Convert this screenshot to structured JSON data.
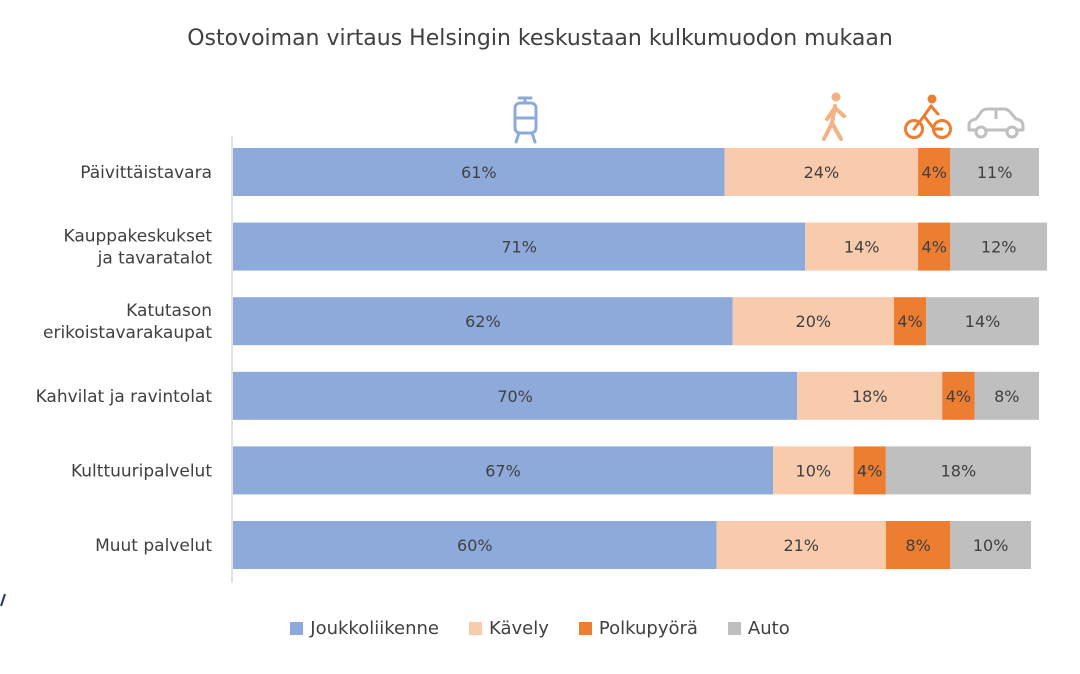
{
  "chart_data": {
    "type": "bar",
    "orientation": "horizontal",
    "stacked": true,
    "title": "Ostovoiman virtaus Helsingin keskustaan kulkumuodon mukaan",
    "categories": [
      "Päivittäistavara",
      "Kauppakeskukset ja tavaratalot",
      "Katutason erikoistavarakaupat",
      "Kahvilat ja ravintolat",
      "Kulttuuripalvelut",
      "Muut palvelut"
    ],
    "series": [
      {
        "name": "Joukkoliikenne",
        "color": "#8eaadb",
        "labelColor": "#404040",
        "values": [
          61,
          71,
          62,
          70,
          67,
          60
        ]
      },
      {
        "name": "Kävely",
        "color": "#f8cbad",
        "labelColor": "#404040",
        "values": [
          24,
          14,
          20,
          18,
          10,
          21
        ]
      },
      {
        "name": "Polkupyörä",
        "color": "#ed7d31",
        "labelColor": "#404040",
        "values": [
          4,
          4,
          4,
          4,
          4,
          8
        ]
      },
      {
        "name": "Auto",
        "color": "#bfbfbf",
        "labelColor": "#404040",
        "values": [
          11,
          12,
          14,
          8,
          18,
          10
        ]
      }
    ],
    "value_suffix": "%",
    "xlim": [
      0,
      100
    ],
    "grid": false,
    "legend_position": "bottom",
    "header_icons": [
      "tram-icon",
      "walking-person-icon",
      "cyclist-icon",
      "car-icon"
    ]
  }
}
